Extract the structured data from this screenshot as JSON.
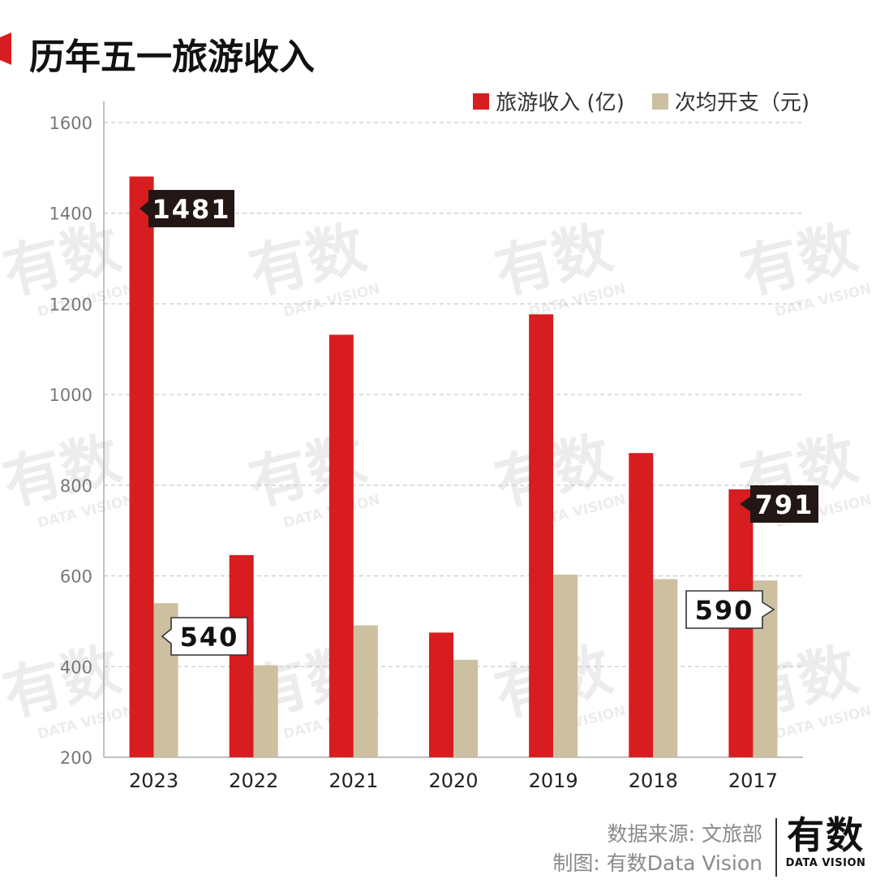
{
  "header": {
    "title": "历年五一旅游收入"
  },
  "watermark": {
    "cn": "有数",
    "en": "DATA VISION"
  },
  "colors": {
    "revenue": "#d71d1f",
    "spend": "#cdc0a0",
    "accent": "#d71d1f",
    "callout_dark": "#221714"
  },
  "legend": {
    "revenue_label": "旅游收入 (亿)",
    "spend_label": "次均开支（元)"
  },
  "chart_data": {
    "type": "bar",
    "categories": [
      "2023",
      "2022",
      "2021",
      "2020",
      "2019",
      "2018",
      "2017"
    ],
    "series": [
      {
        "name": "旅游收入 (亿)",
        "values": [
          1481,
          646,
          1132,
          475,
          1177,
          871,
          791
        ]
      },
      {
        "name": "次均开支（元)",
        "values": [
          540,
          403,
          491,
          415,
          603,
          593,
          590
        ]
      }
    ],
    "ylim": [
      200,
      1600
    ],
    "yticks": [
      "1600",
      "1400",
      "1200",
      "1000",
      "800",
      "600",
      "400",
      "200"
    ],
    "grid": true,
    "legend_position": "top-right",
    "callouts": [
      {
        "text": "1481",
        "style": "dark"
      },
      {
        "text": "540",
        "style": "light"
      },
      {
        "text": "791",
        "style": "dark"
      },
      {
        "text": "590",
        "style": "light"
      }
    ]
  },
  "footer": {
    "source_line": "数据来源: 文旅部",
    "credit_line": "制图: 有数Data Vision",
    "logo_cn": "有数",
    "logo_en": "DATA VISION"
  }
}
